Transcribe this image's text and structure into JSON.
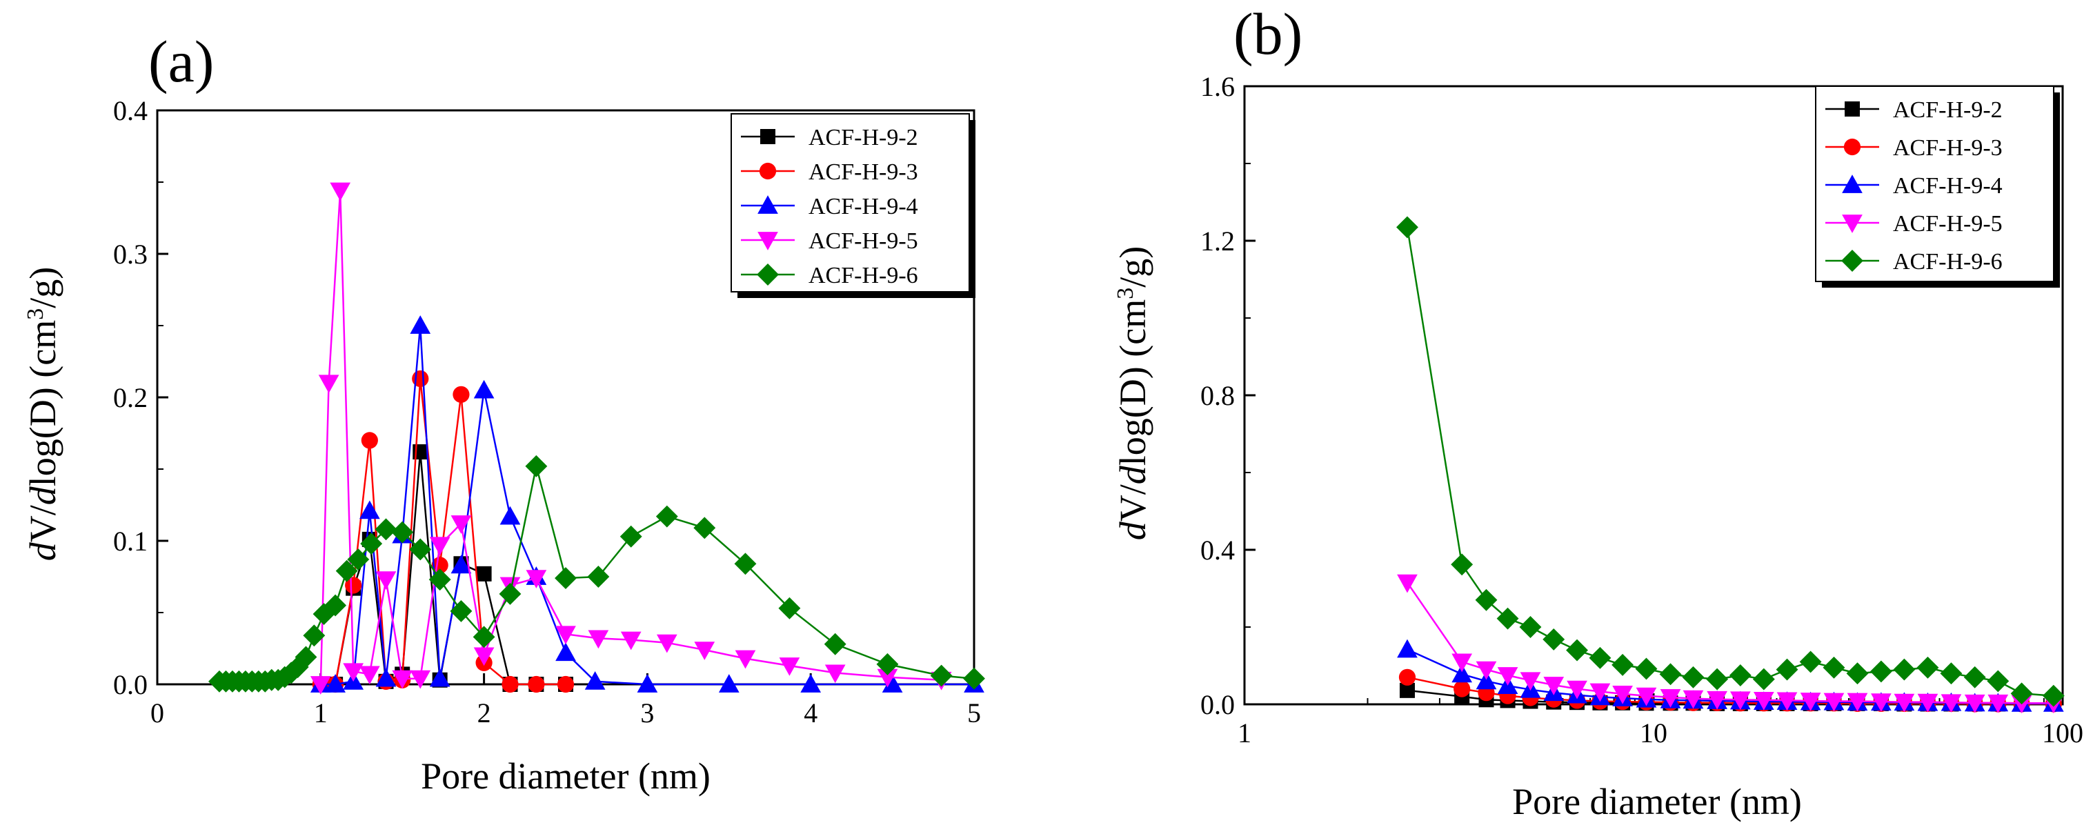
{
  "figure": {
    "label_a": "(a)",
    "label_b": "(b)"
  },
  "colors": {
    "ACF-H-9-2": "#000000",
    "ACF-H-9-3": "#ff0000",
    "ACF-H-9-4": "#0000ff",
    "ACF-H-9-5": "#ff00ff",
    "ACF-H-9-6": "#008000"
  },
  "chart_data": [
    {
      "panel": "(a)",
      "type": "line",
      "xlabel": "Pore diameter (nm)",
      "ylabel": "dV/dlog(D) (cm3/g)",
      "xscale": "linear",
      "xlim": [
        0,
        5
      ],
      "ylim": [
        0,
        0.4
      ],
      "xticks": [
        0,
        1,
        2,
        3,
        4,
        5
      ],
      "xtick_labels": [
        "0",
        "1",
        "2",
        "3",
        "4",
        "5"
      ],
      "yticks": [
        0.0,
        0.1,
        0.2,
        0.3,
        0.4
      ],
      "ytick_labels": [
        "0.0",
        "0.1",
        "0.2",
        "0.3",
        "0.4"
      ],
      "legend": "top-right",
      "series": [
        {
          "name": "ACF-H-9-2",
          "marker": "square",
          "color": "#000000",
          "points": [
            [
              1.0,
              0
            ],
            [
              1.09,
              0
            ],
            [
              1.2,
              0.067
            ],
            [
              1.3,
              0.101
            ],
            [
              1.4,
              0.002
            ],
            [
              1.5,
              0.007
            ],
            [
              1.61,
              0.162
            ],
            [
              1.73,
              0.003
            ],
            [
              1.86,
              0.084
            ],
            [
              2.0,
              0.077
            ],
            [
              2.16,
              0
            ],
            [
              2.32,
              0
            ],
            [
              2.5,
              0
            ]
          ]
        },
        {
          "name": "ACF-H-9-3",
          "marker": "circle",
          "color": "#ff0000",
          "points": [
            [
              1.0,
              0
            ],
            [
              1.09,
              0
            ],
            [
              1.2,
              0.069
            ],
            [
              1.3,
              0.17
            ],
            [
              1.4,
              0.002
            ],
            [
              1.5,
              0.003
            ],
            [
              1.61,
              0.213
            ],
            [
              1.73,
              0.083
            ],
            [
              1.86,
              0.202
            ],
            [
              2.0,
              0.015
            ],
            [
              2.16,
              0
            ],
            [
              2.32,
              0
            ],
            [
              2.5,
              0
            ]
          ]
        },
        {
          "name": "ACF-H-9-4",
          "marker": "triangle-up",
          "color": "#0000ff",
          "points": [
            [
              1.0,
              0
            ],
            [
              1.09,
              0
            ],
            [
              1.2,
              0.002
            ],
            [
              1.3,
              0.121
            ],
            [
              1.4,
              0.004
            ],
            [
              1.5,
              0.104
            ],
            [
              1.61,
              0.25
            ],
            [
              1.73,
              0.004
            ],
            [
              1.86,
              0.083
            ],
            [
              2.0,
              0.205
            ],
            [
              2.16,
              0.117
            ],
            [
              2.32,
              0.075
            ],
            [
              2.5,
              0.022
            ],
            [
              2.68,
              0.002
            ],
            [
              3.0,
              0
            ],
            [
              3.5,
              0
            ],
            [
              4.0,
              0
            ],
            [
              4.5,
              0
            ],
            [
              5.0,
              0
            ]
          ]
        },
        {
          "name": "ACF-H-9-5",
          "marker": "triangle-down",
          "color": "#ff00ff",
          "points": [
            [
              1.0,
              0
            ],
            [
              1.05,
              0.21
            ],
            [
              1.12,
              0.344
            ],
            [
              1.2,
              0.009
            ],
            [
              1.3,
              0.007
            ],
            [
              1.4,
              0.073
            ],
            [
              1.5,
              0.004
            ],
            [
              1.61,
              0.004
            ],
            [
              1.73,
              0.097
            ],
            [
              1.86,
              0.112
            ],
            [
              2.0,
              0.02
            ],
            [
              2.16,
              0.069
            ],
            [
              2.32,
              0.074
            ],
            [
              2.5,
              0.035
            ],
            [
              2.7,
              0.032
            ],
            [
              2.9,
              0.031
            ],
            [
              3.12,
              0.029
            ],
            [
              3.35,
              0.024
            ],
            [
              3.6,
              0.018
            ],
            [
              3.87,
              0.013
            ],
            [
              4.15,
              0.008
            ],
            [
              4.47,
              0.005
            ],
            [
              4.8,
              0.003
            ]
          ]
        },
        {
          "name": "ACF-H-9-6",
          "marker": "diamond",
          "color": "#008000",
          "points": [
            [
              0.38,
              0.002
            ],
            [
              0.42,
              0.002
            ],
            [
              0.46,
              0.002
            ],
            [
              0.5,
              0.002
            ],
            [
              0.54,
              0.002
            ],
            [
              0.58,
              0.002
            ],
            [
              0.62,
              0.002
            ],
            [
              0.66,
              0.002
            ],
            [
              0.7,
              0.003
            ],
            [
              0.74,
              0.003
            ],
            [
              0.78,
              0.005
            ],
            [
              0.82,
              0.008
            ],
            [
              0.86,
              0.012
            ],
            [
              0.91,
              0.019
            ],
            [
              0.96,
              0.034
            ],
            [
              1.02,
              0.049
            ],
            [
              1.09,
              0.055
            ],
            [
              1.16,
              0.079
            ],
            [
              1.23,
              0.087
            ],
            [
              1.31,
              0.098
            ],
            [
              1.4,
              0.108
            ],
            [
              1.5,
              0.106
            ],
            [
              1.61,
              0.094
            ],
            [
              1.73,
              0.073
            ],
            [
              1.86,
              0.051
            ],
            [
              2.0,
              0.033
            ],
            [
              2.16,
              0.063
            ],
            [
              2.32,
              0.152
            ],
            [
              2.5,
              0.074
            ],
            [
              2.7,
              0.075
            ],
            [
              2.9,
              0.103
            ],
            [
              3.12,
              0.117
            ],
            [
              3.35,
              0.109
            ],
            [
              3.6,
              0.084
            ],
            [
              3.87,
              0.053
            ],
            [
              4.15,
              0.028
            ],
            [
              4.47,
              0.014
            ],
            [
              4.8,
              0.006
            ],
            [
              5.0,
              0.004
            ]
          ]
        }
      ]
    },
    {
      "panel": "(b)",
      "type": "line",
      "xlabel": "Pore diameter (nm)",
      "ylabel": "dV/dlog(D) (cm3/g)",
      "xscale": "log",
      "xlim": [
        1,
        100
      ],
      "ylim": [
        0,
        1.6
      ],
      "xticks": [
        1,
        10,
        100
      ],
      "xtick_labels": [
        "1",
        "10",
        "100"
      ],
      "yticks": [
        0.0,
        0.4,
        0.8,
        1.2,
        1.6
      ],
      "ytick_labels": [
        "0.0",
        "0.4",
        "0.8",
        "1.2",
        "1.6"
      ],
      "legend": "top-right",
      "series": [
        {
          "name": "ACF-H-9-2",
          "marker": "square",
          "color": "#000000",
          "points": [
            [
              2.5,
              0.036
            ],
            [
              3.4,
              0.02
            ],
            [
              3.9,
              0.012
            ],
            [
              4.4,
              0.01
            ],
            [
              5.0,
              0.008
            ],
            [
              5.7,
              0.006
            ],
            [
              6.5,
              0.005
            ],
            [
              7.4,
              0.004
            ],
            [
              8.4,
              0.004
            ],
            [
              9.6,
              0.003
            ],
            [
              11,
              0.003
            ],
            [
              12.5,
              0.003
            ],
            [
              14.3,
              0.002
            ],
            [
              16.3,
              0.002
            ],
            [
              18.6,
              0.002
            ],
            [
              21.2,
              0.002
            ],
            [
              24.2,
              0.002
            ],
            [
              27.6,
              0.002
            ],
            [
              31.5,
              0.002
            ],
            [
              36,
              0.002
            ],
            [
              41,
              0.001
            ],
            [
              46.8,
              0.001
            ],
            [
              53.4,
              0.001
            ],
            [
              61,
              0.001
            ],
            [
              69.5,
              0.001
            ],
            [
              79.4,
              0.001
            ],
            [
              95,
              0.001
            ]
          ]
        },
        {
          "name": "ACF-H-9-3",
          "marker": "circle",
          "color": "#ff0000",
          "points": [
            [
              2.5,
              0.07
            ],
            [
              3.4,
              0.04
            ],
            [
              3.9,
              0.03
            ],
            [
              4.4,
              0.022
            ],
            [
              5.0,
              0.017
            ],
            [
              5.7,
              0.013
            ],
            [
              6.5,
              0.01
            ],
            [
              7.4,
              0.008
            ],
            [
              8.4,
              0.007
            ],
            [
              9.6,
              0.006
            ],
            [
              11,
              0.005
            ],
            [
              12.5,
              0.004
            ],
            [
              14.3,
              0.004
            ],
            [
              16.3,
              0.003
            ],
            [
              18.6,
              0.003
            ],
            [
              21.2,
              0.003
            ],
            [
              24.2,
              0.003
            ],
            [
              27.6,
              0.003
            ],
            [
              31.5,
              0.002
            ],
            [
              36,
              0.002
            ],
            [
              41,
              0.002
            ],
            [
              46.8,
              0.002
            ],
            [
              53.4,
              0.002
            ],
            [
              61,
              0.001
            ],
            [
              69.5,
              0.001
            ],
            [
              79.4,
              0.001
            ],
            [
              95,
              0.001
            ]
          ]
        },
        {
          "name": "ACF-H-9-4",
          "marker": "triangle-up",
          "color": "#0000ff",
          "points": [
            [
              2.5,
              0.142
            ],
            [
              3.4,
              0.078
            ],
            [
              3.9,
              0.06
            ],
            [
              4.4,
              0.048
            ],
            [
              5.0,
              0.038
            ],
            [
              5.7,
              0.03
            ],
            [
              6.5,
              0.024
            ],
            [
              7.4,
              0.019
            ],
            [
              8.4,
              0.016
            ],
            [
              9.6,
              0.013
            ],
            [
              11,
              0.011
            ],
            [
              12.5,
              0.01
            ],
            [
              14.3,
              0.009
            ],
            [
              16.3,
              0.008
            ],
            [
              18.6,
              0.007
            ],
            [
              21.2,
              0.007
            ],
            [
              24.2,
              0.006
            ],
            [
              27.6,
              0.006
            ],
            [
              31.5,
              0.005
            ],
            [
              36,
              0.005
            ],
            [
              41,
              0.005
            ],
            [
              46.8,
              0.004
            ],
            [
              53.4,
              0.004
            ],
            [
              61,
              0.003
            ],
            [
              69.5,
              0.003
            ],
            [
              79.4,
              0.002
            ],
            [
              95,
              0.002
            ]
          ]
        },
        {
          "name": "ACF-H-9-5",
          "marker": "triangle-down",
          "color": "#ff00ff",
          "points": [
            [
              2.5,
              0.315
            ],
            [
              3.4,
              0.11
            ],
            [
              3.9,
              0.09
            ],
            [
              4.4,
              0.075
            ],
            [
              5.0,
              0.062
            ],
            [
              5.7,
              0.05
            ],
            [
              6.5,
              0.04
            ],
            [
              7.4,
              0.033
            ],
            [
              8.4,
              0.027
            ],
            [
              9.6,
              0.022
            ],
            [
              11,
              0.018
            ],
            [
              12.5,
              0.015
            ],
            [
              14.3,
              0.013
            ],
            [
              16.3,
              0.012
            ],
            [
              18.6,
              0.011
            ],
            [
              21.2,
              0.01
            ],
            [
              24.2,
              0.009
            ],
            [
              27.6,
              0.008
            ],
            [
              31.5,
              0.008
            ],
            [
              36,
              0.007
            ],
            [
              41,
              0.006
            ],
            [
              46.8,
              0.006
            ],
            [
              53.4,
              0.005
            ],
            [
              61,
              0.004
            ],
            [
              69.5,
              0.004
            ],
            [
              79.4,
              0.003
            ],
            [
              95,
              0.003
            ]
          ]
        },
        {
          "name": "ACF-H-9-6",
          "marker": "diamond",
          "color": "#008000",
          "points": [
            [
              2.5,
              1.235
            ],
            [
              3.4,
              0.362
            ],
            [
              3.9,
              0.27
            ],
            [
              4.4,
              0.222
            ],
            [
              5.0,
              0.2
            ],
            [
              5.7,
              0.168
            ],
            [
              6.5,
              0.14
            ],
            [
              7.4,
              0.12
            ],
            [
              8.4,
              0.102
            ],
            [
              9.6,
              0.092
            ],
            [
              11,
              0.078
            ],
            [
              12.5,
              0.07
            ],
            [
              14.3,
              0.065
            ],
            [
              16.3,
              0.075
            ],
            [
              18.6,
              0.065
            ],
            [
              21.2,
              0.09
            ],
            [
              24.2,
              0.11
            ],
            [
              27.6,
              0.095
            ],
            [
              31.5,
              0.08
            ],
            [
              36,
              0.085
            ],
            [
              41,
              0.09
            ],
            [
              46.8,
              0.095
            ],
            [
              53.4,
              0.08
            ],
            [
              61,
              0.07
            ],
            [
              69.5,
              0.06
            ],
            [
              79.4,
              0.028
            ],
            [
              95,
              0.022
            ]
          ]
        }
      ]
    }
  ]
}
